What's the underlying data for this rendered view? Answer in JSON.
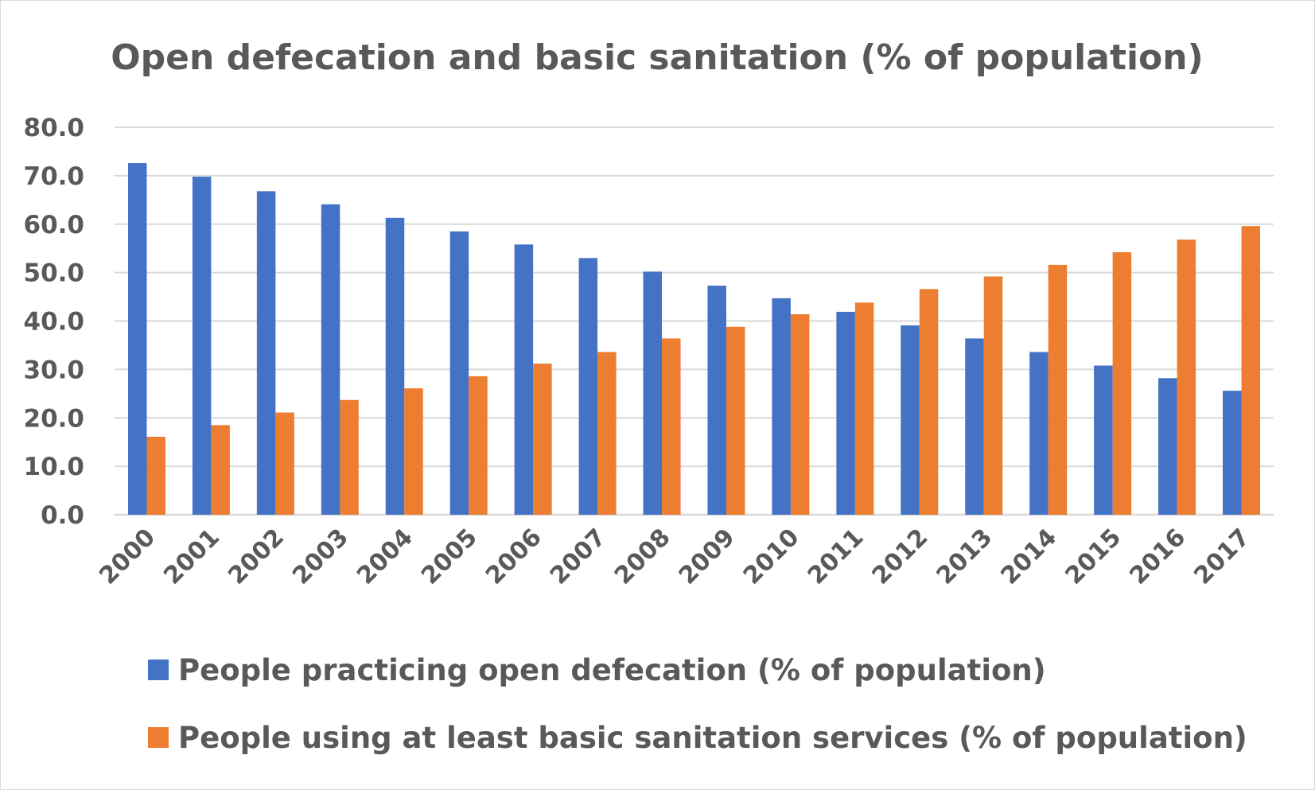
{
  "chart_data": {
    "type": "bar",
    "title": "Open defecation and basic sanitation (% of population)",
    "xlabel": "",
    "ylabel": "",
    "ylim": [
      0,
      80
    ],
    "yticks": [
      "0.0",
      "10.0",
      "20.0",
      "30.0",
      "40.0",
      "50.0",
      "60.0",
      "70.0",
      "80.0"
    ],
    "grid": true,
    "legend_position": "bottom",
    "categories": [
      "2000",
      "2001",
      "2002",
      "2003",
      "2004",
      "2005",
      "2006",
      "2007",
      "2008",
      "2009",
      "2010",
      "2011",
      "2012",
      "2013",
      "2014",
      "2015",
      "2016",
      "2017"
    ],
    "series": [
      {
        "name": "People practicing open defecation (% of population)",
        "color": "#4472C4",
        "values": [
          72.6,
          69.8,
          66.8,
          64.1,
          61.3,
          58.5,
          55.8,
          53.0,
          50.2,
          47.3,
          44.7,
          41.9,
          39.1,
          36.4,
          33.6,
          30.8,
          28.2,
          25.6
        ]
      },
      {
        "name": "People using at least basic sanitation services (% of population)",
        "color": "#ED7D31",
        "values": [
          16.1,
          18.5,
          21.1,
          23.7,
          26.1,
          28.6,
          31.2,
          33.6,
          36.4,
          38.8,
          41.4,
          43.8,
          46.6,
          49.2,
          51.6,
          54.2,
          56.8,
          59.6
        ]
      }
    ]
  }
}
